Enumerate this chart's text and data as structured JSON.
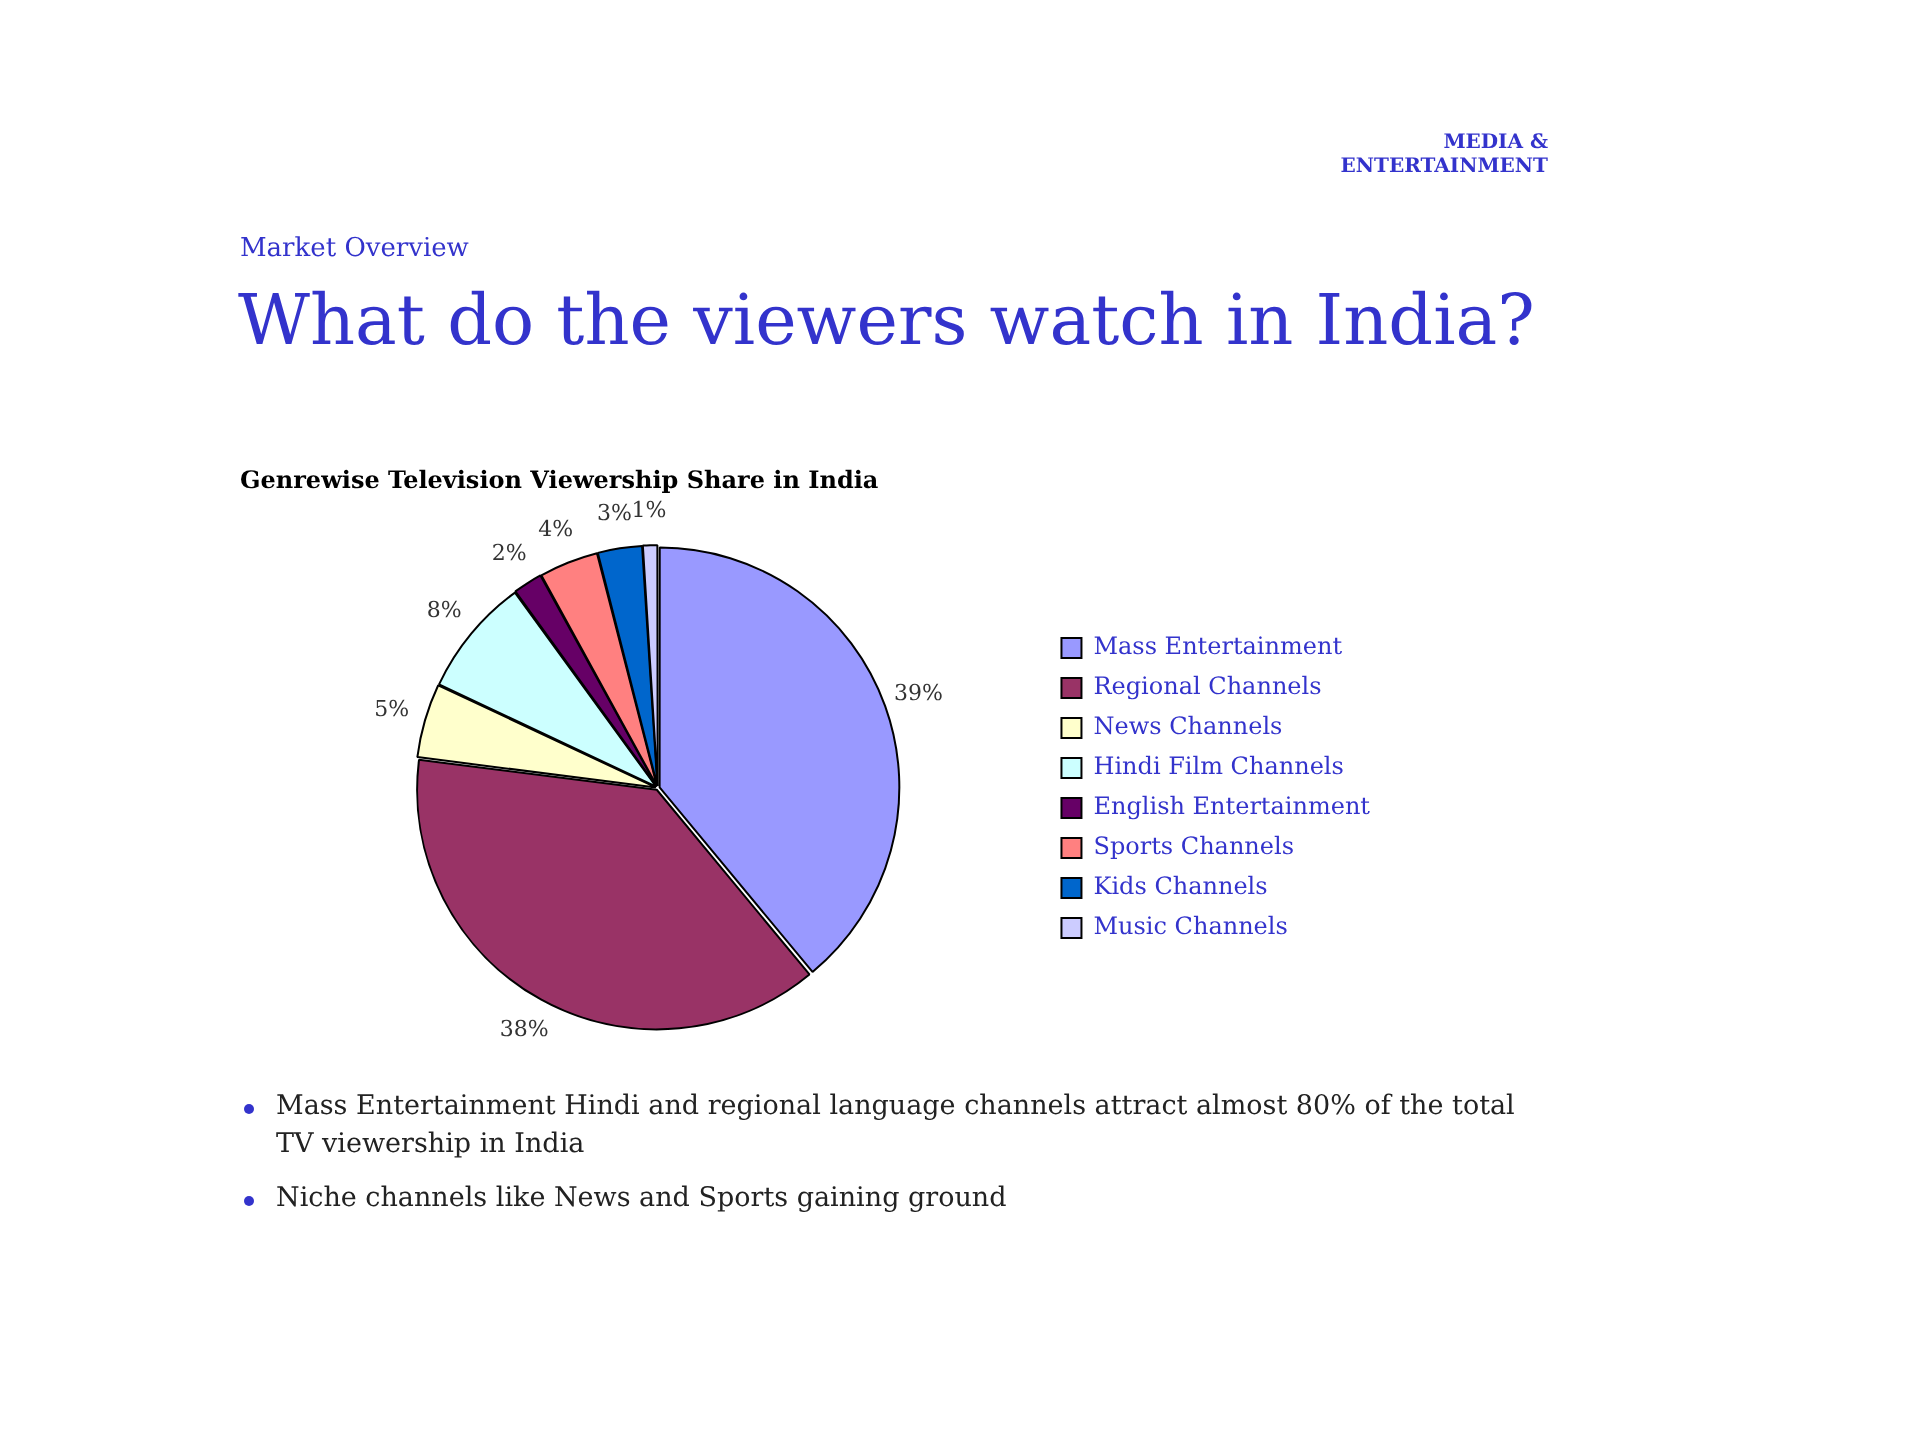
{
  "chart_data": {
    "type": "pie",
    "title": "What do the viewers watch in India?",
    "subtitle": "Genrewise Television Viewership Share in India",
    "categories": [
      "Mass Entertainment",
      "Regional Channels",
      "News Channels",
      "Hindi Film Channels",
      "English Entertainment",
      "Sports Channels",
      "Kids Channels",
      "Music Channels"
    ],
    "values": [
      39,
      38,
      5,
      8,
      2,
      4,
      3,
      1
    ],
    "colors": [
      "#9999ff",
      "#993366",
      "#ffffcc",
      "#ccffff",
      "#660066",
      "#ff8080",
      "#0066cc",
      "#ccccff"
    ],
    "value_labels": [
      "39%",
      "38%",
      "5%",
      "8%",
      "2%",
      "4%",
      "3%",
      "1%"
    ],
    "legend": "right",
    "annotations": [
      "Market Overview",
      "MEDIA & ENTERTAINMENT",
      "Mass Entertainment Hindi and regional language channels attract almost 80% of the total TV viewership in India",
      "Niche channels like News and Sports gaining ground"
    ]
  }
}
